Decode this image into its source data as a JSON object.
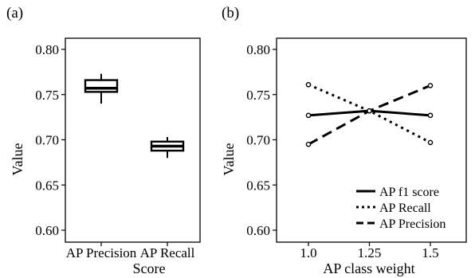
{
  "chart_data": [
    {
      "type": "box",
      "panel_label": "(a)",
      "xlabel": "Score",
      "ylabel": "Value",
      "ylim": [
        0.59,
        0.81
      ],
      "yticks": [
        "0.60",
        "0.65",
        "0.70",
        "0.75",
        "0.80"
      ],
      "categories": [
        "AP Precision",
        "AP Recall"
      ],
      "boxes": [
        {
          "category": "AP Precision",
          "whisker_low": 0.74,
          "q1": 0.753,
          "median": 0.757,
          "q3": 0.766,
          "whisker_high": 0.773
        },
        {
          "category": "AP Recall",
          "whisker_low": 0.68,
          "q1": 0.688,
          "median": 0.693,
          "q3": 0.698,
          "whisker_high": 0.703
        }
      ],
      "grid": false
    },
    {
      "type": "line",
      "panel_label": "(b)",
      "xlabel": "AP class weight",
      "ylabel": "Value",
      "ylim": [
        0.59,
        0.81
      ],
      "xlim": [
        0.95,
        1.55
      ],
      "yticks": [
        "0.60",
        "0.65",
        "0.70",
        "0.75",
        "0.80"
      ],
      "xticks": [
        "1.0",
        "1.25",
        "1.5"
      ],
      "x": [
        1.0,
        1.25,
        1.5
      ],
      "series": [
        {
          "name": "AP f1 score",
          "style": "solid",
          "values": [
            0.727,
            0.732,
            0.727
          ]
        },
        {
          "name": "AP Recall",
          "style": "dotted",
          "values": [
            0.761,
            0.732,
            0.697
          ]
        },
        {
          "name": "AP Precision",
          "style": "dashed",
          "values": [
            0.695,
            0.732,
            0.76
          ]
        }
      ],
      "legend_position": "bottom-right",
      "grid": false
    }
  ]
}
